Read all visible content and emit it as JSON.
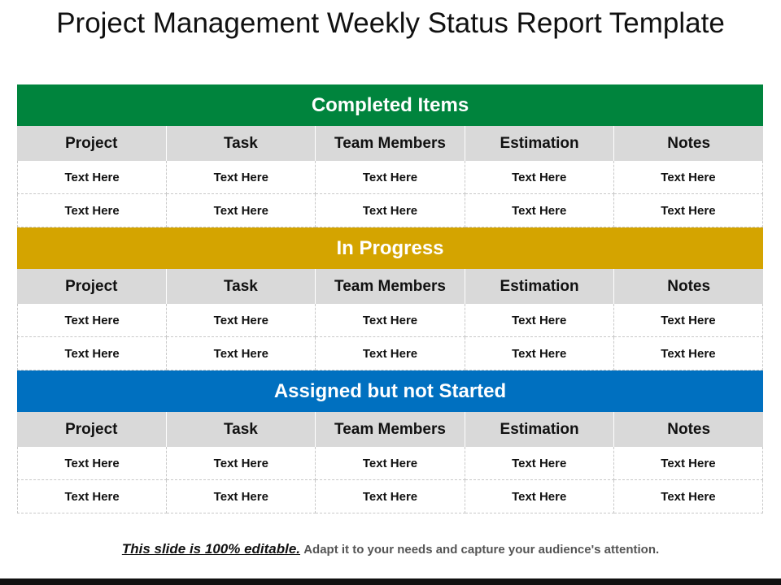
{
  "title": "Project Management Weekly Status Report Template",
  "columns": [
    "Project",
    "Task",
    "Team Members",
    "Estimation",
    "Notes"
  ],
  "sections": [
    {
      "title": "Completed Items",
      "color": "#00843d",
      "rows": [
        [
          "Text Here",
          "Text Here",
          "Text Here",
          "Text Here",
          "Text Here"
        ],
        [
          "Text Here",
          "Text Here",
          "Text Here",
          "Text Here",
          "Text Here"
        ]
      ]
    },
    {
      "title": "In Progress",
      "color": "#d4a400",
      "rows": [
        [
          "Text Here",
          "Text Here",
          "Text Here",
          "Text Here",
          "Text Here"
        ],
        [
          "Text Here",
          "Text Here",
          "Text Here",
          "Text Here",
          "Text Here"
        ]
      ]
    },
    {
      "title": "Assigned but not Started",
      "color": "#0070c0",
      "rows": [
        [
          "Text Here",
          "Text Here",
          "Text Here",
          "Text Here",
          "Text Here"
        ],
        [
          "Text Here",
          "Text Here",
          "Text Here",
          "Text Here",
          "Text Here"
        ]
      ]
    }
  ],
  "footer": {
    "emphasis": "This slide is 100% editable.",
    "text": "Adapt it to your needs and capture your audience's attention."
  }
}
